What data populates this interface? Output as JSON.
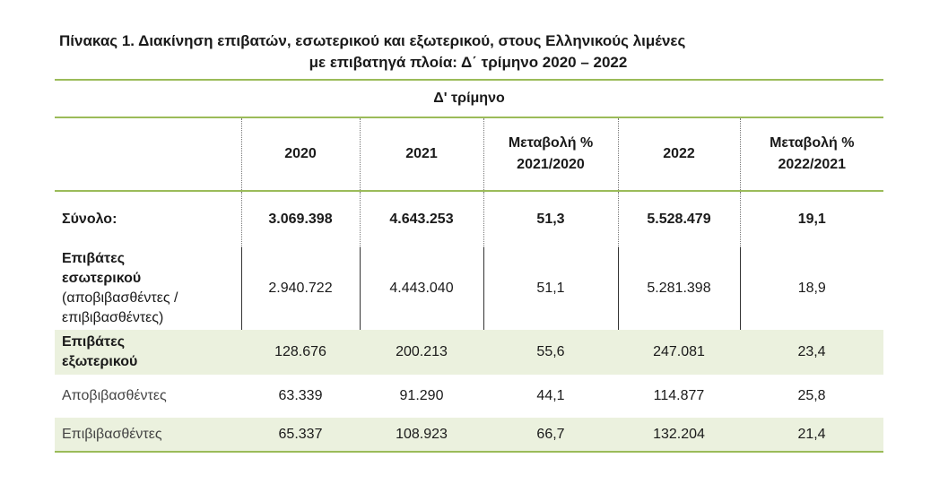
{
  "title": {
    "line1": "Πίνακας 1. Διακίνηση επιβατών, εσωτερικού και εξωτερικού, στους Ελληνικούς λιμένες",
    "line2": "με επιβατηγά πλοία: Δ΄ τρίμηνο 2020 – 2022"
  },
  "table": {
    "period_header": "Δ' τρίμηνο",
    "columns": [
      "2020",
      "2021",
      "Μεταβολή % 2021/2020",
      "2022",
      "Μεταβολή % 2022/2021"
    ],
    "column_lines": [
      [
        "2020"
      ],
      [
        "2021"
      ],
      [
        "Μεταβολή %",
        "2021/2020"
      ],
      [
        "2022"
      ],
      [
        "Μεταβολή %",
        "2022/2021"
      ]
    ],
    "rows": [
      {
        "label": "Σύνολο:",
        "values": [
          "3.069.398",
          "4.643.253",
          "51,3",
          "5.528.479",
          "19,1"
        ]
      },
      {
        "label_bold_1": "Επιβάτες",
        "label_bold_2": "εσωτερικού",
        "label_note_1": "(αποβιβασθέντες /",
        "label_note_2": "επιβιβασθέντες)",
        "values": [
          "2.940.722",
          "4.443.040",
          "51,1",
          "5.281.398",
          "18,9"
        ]
      },
      {
        "label_bold_1": "Επιβάτες",
        "label_bold_2": "εξωτερικού",
        "values": [
          "128.676",
          "200.213",
          "55,6",
          "247.081",
          "23,4"
        ]
      },
      {
        "label": "Αποβιβασθέντες",
        "values": [
          "63.339",
          "91.290",
          "44,1",
          "114.877",
          "25,8"
        ]
      },
      {
        "label": "Επιβιβασθέντες",
        "values": [
          "65.337",
          "108.923",
          "66,7",
          "132.204",
          "21,4"
        ]
      }
    ]
  }
}
